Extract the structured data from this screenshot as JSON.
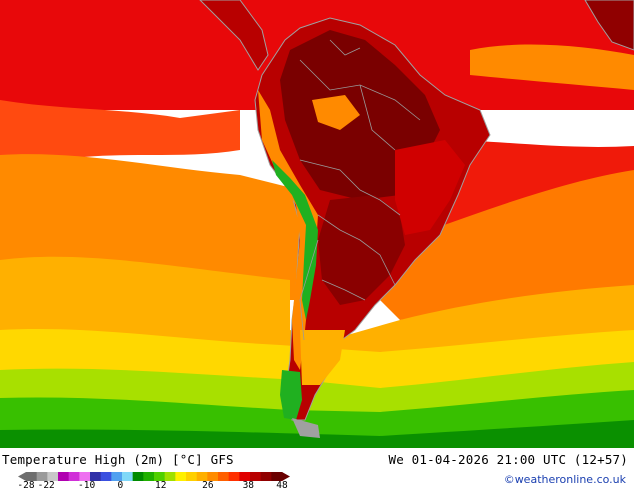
{
  "map": {
    "title": "Temperature High (2m) [°C] GFS",
    "valid_time": "We 01-04-2026 21:00 UTC (12+57)",
    "credit": "©weatheronline.co.uk",
    "legend": {
      "ticks": [
        "-28",
        "-22",
        "-10",
        "0",
        "12",
        "26",
        "38",
        "48"
      ],
      "tick_values": [
        -28,
        -22,
        -10,
        0,
        12,
        26,
        38,
        48
      ],
      "range": [
        -28,
        48
      ],
      "colors": [
        "#6e6e6e",
        "#9a9a9a",
        "#c8c8c8",
        "#b000b0",
        "#d030d8",
        "#ee70f0",
        "#3030a8",
        "#3a50e0",
        "#50a0f0",
        "#80d8f8",
        "#008a00",
        "#20b000",
        "#50d000",
        "#a0e000",
        "#fff000",
        "#ffd000",
        "#ffb000",
        "#ff8c00",
        "#ff6000",
        "#ff3000",
        "#e00000",
        "#b80000",
        "#900000",
        "#6a0000"
      ]
    },
    "palette": {
      "ocean_warm": "#e8080a",
      "ocean_orange": "#ff8a00",
      "ocean_amber": "#ffb000",
      "ocean_yellow": "#ffd800",
      "ocean_lime": "#a8e000",
      "ocean_green": "#38c000",
      "ocean_darkgreen": "#0a9000",
      "land_hot": "#b80000",
      "land_hottest": "#7a0000",
      "mountains": "#20b020",
      "coastline": "#a0a0a0"
    }
  }
}
